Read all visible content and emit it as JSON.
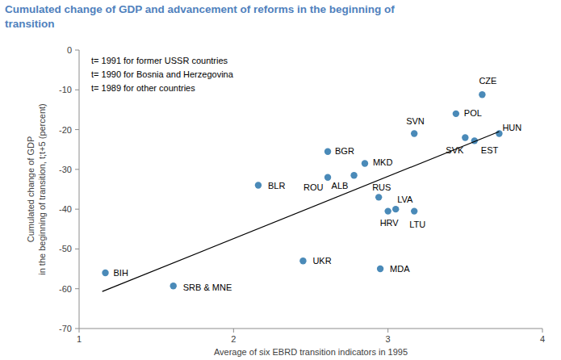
{
  "chart_data": {
    "type": "scatter",
    "title": [
      "Cumulated change of GDP and advancement of reforms in the beginning of",
      "transition"
    ],
    "annotations": [
      "t= 1991 for former USSR countries",
      "t= 1990 for Bosnia and Herzegovina",
      "t= 1989 for other countries"
    ],
    "xlabel": "Average of six EBRD transition indicators in 1995",
    "ylabel": [
      "Cumulated change of GDP",
      "in the beginning of transition, t;t+5 (percent)"
    ],
    "xlim": [
      1,
      4
    ],
    "xticks": [
      1,
      2,
      3,
      4
    ],
    "ylim": [
      -70,
      0
    ],
    "yticks": [
      -70,
      -60,
      -50,
      -40,
      -30,
      -20,
      -10,
      0
    ],
    "grid": false,
    "series": [
      {
        "type": "scatter",
        "marker": "circle",
        "color": "#4a8ab8",
        "labels": [
          "BIH",
          "SRB & MNE",
          "BLR",
          "UKR",
          "BGR",
          "ROU",
          "ALB",
          "MKD",
          "RUS",
          "HRV",
          "LVA",
          "LTU",
          "MDA",
          "SVN",
          "POL",
          "CZE",
          "SVK",
          "EST",
          "HUN"
        ],
        "x": [
          1.17,
          1.61,
          2.16,
          2.45,
          2.61,
          2.61,
          2.78,
          2.85,
          2.94,
          3.0,
          3.05,
          3.17,
          2.95,
          3.17,
          3.44,
          3.61,
          3.5,
          3.56,
          3.72
        ],
        "values": [
          -56,
          -59.3,
          -34,
          -53,
          -25.5,
          -32,
          -31.5,
          -28.5,
          -37,
          -40.5,
          -40,
          -40.5,
          -55,
          -21,
          -16,
          -11.2,
          -22,
          -22.8,
          -21
        ]
      },
      {
        "type": "line",
        "line_style": "solid",
        "color": "#000000",
        "x": [
          1.15,
          3.72
        ],
        "values": [
          -60.7,
          -20.5
        ]
      }
    ]
  }
}
